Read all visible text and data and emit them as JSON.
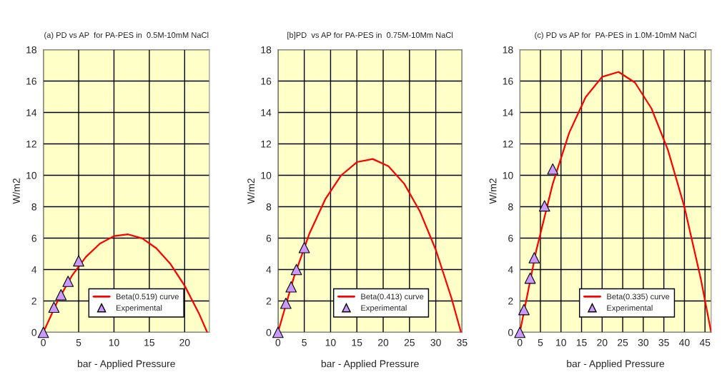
{
  "chart_data": [
    {
      "type": "line",
      "title": "(a) PD vs AP  for PA-PES in  0.5M-10mM NaCl",
      "xlabel": "bar - Applied Pressure",
      "ylabel": "W/m2",
      "xlim": [
        0,
        23.5
      ],
      "xticks": [
        0,
        5,
        10,
        15,
        20
      ],
      "ylim": [
        0,
        18
      ],
      "yticks": [
        0,
        2,
        4,
        6,
        8,
        10,
        12,
        14,
        16,
        18
      ],
      "grid": true,
      "legend": "bottom",
      "series": [
        {
          "name": "Beta(0.519) curve",
          "color": "#ff0000",
          "marker": "none",
          "x": [
            0,
            2,
            4,
            6,
            8,
            10,
            12,
            14,
            16,
            18,
            20,
            22,
            23.2
          ],
          "values": [
            0,
            1.97,
            3.57,
            4.79,
            5.65,
            6.13,
            6.24,
            5.98,
            5.35,
            4.35,
            2.97,
            1.23,
            0
          ]
        },
        {
          "name": "Experimental",
          "type": "scatter",
          "color": "#cc99ff",
          "marker": "triangle",
          "x": [
            0,
            1.5,
            2.5,
            3.5,
            5
          ],
          "values": [
            0,
            1.6,
            2.4,
            3.25,
            4.55
          ]
        }
      ]
    },
    {
      "type": "line",
      "title": "[b]PD  vs AP for PA-PES in  0.75M-10Mm NaCl",
      "xlabel": "bar - Applied Pressure",
      "ylabel": "W/m2",
      "xlim": [
        0,
        35
      ],
      "xticks": [
        0,
        5,
        10,
        15,
        20,
        25,
        30,
        35
      ],
      "ylim": [
        0,
        18
      ],
      "yticks": [
        0,
        2,
        4,
        6,
        8,
        10,
        12,
        14,
        16,
        18
      ],
      "grid": true,
      "legend": "bottom",
      "series": [
        {
          "name": "Beta(0.413) curve",
          "color": "#ff0000",
          "marker": "none",
          "x": [
            0,
            3,
            6,
            9,
            12,
            15,
            18,
            21,
            24,
            27,
            30,
            33,
            34.8
          ],
          "values": [
            0,
            3.48,
            6.31,
            8.48,
            9.99,
            10.84,
            11.04,
            10.58,
            9.46,
            7.69,
            5.26,
            2.17,
            0
          ]
        },
        {
          "name": "Experimental",
          "type": "scatter",
          "color": "#cc99ff",
          "marker": "triangle",
          "x": [
            0,
            1.5,
            2.5,
            3.5,
            5
          ],
          "values": [
            0,
            1.85,
            2.9,
            4.0,
            5.4
          ]
        }
      ]
    },
    {
      "type": "line",
      "title": "(c) PD vs AP for  PA-PES in 1.0M-10mM NaCl",
      "xlabel": "bar - Applied Pressure",
      "ylabel": "W/m2",
      "xlim": [
        0,
        46.5
      ],
      "xticks": [
        0,
        5,
        10,
        15,
        20,
        25,
        30,
        35,
        40,
        45
      ],
      "ylim": [
        0,
        18
      ],
      "yticks": [
        0,
        2,
        4,
        6,
        8,
        10,
        12,
        14,
        16,
        18
      ],
      "grid": true,
      "legend": "bottom",
      "series": [
        {
          "name": "Beta(0.335) curve",
          "color": "#ff0000",
          "marker": "none",
          "x": [
            0,
            4,
            8,
            12,
            16,
            20,
            24,
            28,
            32,
            36,
            40,
            44,
            46.5
          ],
          "values": [
            0,
            5.22,
            9.46,
            12.71,
            14.98,
            16.27,
            16.58,
            15.9,
            14.25,
            11.61,
            7.98,
            3.38,
            0
          ]
        },
        {
          "name": "Experimental",
          "type": "scatter",
          "color": "#cc99ff",
          "marker": "triangle",
          "x": [
            0,
            1,
            2.5,
            3.5,
            6,
            8
          ],
          "values": [
            0,
            1.45,
            3.45,
            4.75,
            8.05,
            10.4
          ]
        }
      ]
    }
  ]
}
